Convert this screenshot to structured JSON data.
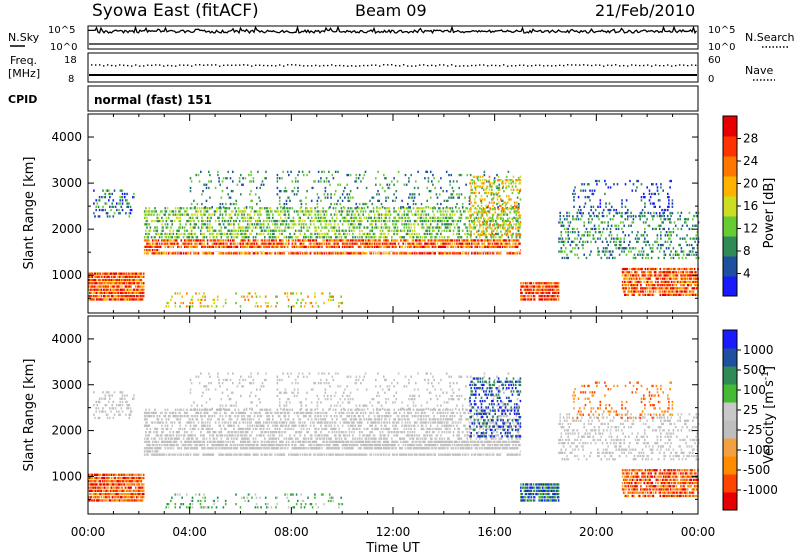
{
  "header": {
    "station": "Syowa East (fitACF)",
    "beam": "Beam 09",
    "date": "21/Feb/2010"
  },
  "noise_panel": {
    "left_label": "N.Sky",
    "right_label": "N.Search",
    "ticks_left": [
      "10^5",
      "10^0"
    ],
    "ticks_right": [
      "10^5",
      "10^0"
    ]
  },
  "freq_panel": {
    "left_label_line1": "Freq.",
    "left_label_line2": "[MHz]",
    "ticks_left": [
      "18",
      "8"
    ],
    "right_label": "Nave",
    "ticks_right": [
      "60",
      "0"
    ]
  },
  "cpid": {
    "label": "CPID",
    "text": "normal (fast) 151"
  },
  "colors": {
    "scale": [
      "#1a1aff",
      "#1f4fa0",
      "#2e8b57",
      "#66cc33",
      "#ccdd22",
      "#ffb300",
      "#ff7700",
      "#ff3300",
      "#e60000"
    ],
    "velocity_scale": [
      "#e60000",
      "#ff4400",
      "#ff8c00",
      "#f2a040",
      "#bebebe",
      "#c8c8c8",
      "#44bb33",
      "#2e8b57",
      "#1f4fa0",
      "#1a1aff"
    ]
  },
  "chart_data": [
    {
      "type": "heatmap",
      "panel": "power",
      "ylabel": "Slant Range [km]",
      "yticks": [
        "1000",
        "2000",
        "3000",
        "4000"
      ],
      "ylim": [
        180,
        4500
      ],
      "xlim_hours": [
        0,
        24
      ],
      "colorbar_label": "Power [dB]",
      "colorbar_ticks": [
        "4",
        "8",
        "12",
        "16",
        "20",
        "24",
        "28"
      ],
      "colorbar_range": [
        0,
        30
      ]
    },
    {
      "type": "heatmap",
      "panel": "velocity",
      "ylabel": "Slant Range [km]",
      "yticks": [
        "1000",
        "2000",
        "3000",
        "4000"
      ],
      "ylim": [
        180,
        4500
      ],
      "xlim_hours": [
        0,
        24
      ],
      "colorbar_label": "Velocity [m s",
      "colorbar_label_sup": "-1",
      "colorbar_label_end": "]",
      "colorbar_ticks": [
        "1000",
        "500",
        "100",
        "25",
        "-25",
        "-100",
        "-500",
        "-1000"
      ]
    }
  ],
  "xaxis": {
    "label": "Time UT",
    "ticks": [
      "00:00",
      "04:00",
      "08:00",
      "12:00",
      "16:00",
      "20:00",
      "00:00"
    ]
  }
}
